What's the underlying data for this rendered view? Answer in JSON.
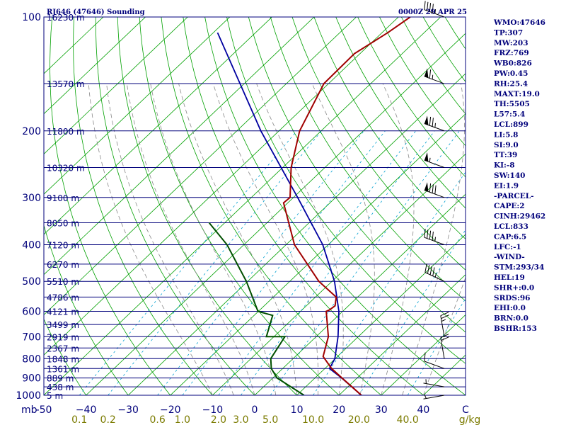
{
  "colors": {
    "frame": "#00007b",
    "isotherm": "#00a000",
    "dry_adiabat": "#00a000",
    "moist_adiabat": "#888888",
    "mixing_ratio": "#00a0d0",
    "temperature": "#a00000",
    "dewpoint": "#005000",
    "parcel": "#0000a0",
    "wind": "#000000",
    "mix_label": "#7b7b00"
  },
  "chart_data": {
    "type": "skewt-logp",
    "title": "RJ646 (47646) Sounding",
    "datetime": "0000Z 29 APR 25",
    "x_axis": {
      "unit_label": "mb",
      "range_c": [
        -50,
        50
      ],
      "ticks": [
        {
          "value": -50,
          "label": "-50"
        },
        {
          "value": -40,
          "label": "−40"
        },
        {
          "value": -30,
          "label": "−30"
        },
        {
          "value": -20,
          "label": "−20"
        },
        {
          "value": -10,
          "label": "−10"
        },
        {
          "value": 0,
          "label": "0"
        },
        {
          "value": 10,
          "label": "10"
        },
        {
          "value": 20,
          "label": "20"
        },
        {
          "value": 30,
          "label": "30"
        },
        {
          "value": 40,
          "label": "40"
        },
        {
          "value": 50,
          "label": "C"
        }
      ]
    },
    "y_axis": {
      "scale": "log",
      "range_mb": [
        1000,
        100
      ],
      "ticks": [
        {
          "p": 100,
          "label": "100"
        },
        {
          "p": 200,
          "label": "200"
        },
        {
          "p": 300,
          "label": "300"
        },
        {
          "p": 400,
          "label": "400"
        },
        {
          "p": 500,
          "label": "500"
        },
        {
          "p": 600,
          "label": "600"
        },
        {
          "p": 700,
          "label": "700"
        },
        {
          "p": 800,
          "label": "800"
        },
        {
          "p": 900,
          "label": "900"
        },
        {
          "p": 1000,
          "label": "1000"
        }
      ]
    },
    "height_levels": [
      {
        "p": 100,
        "label": "16230 m"
      },
      {
        "p": 150,
        "label": "13570 m"
      },
      {
        "p": 200,
        "label": "11800 m"
      },
      {
        "p": 250,
        "label": "10320 m"
      },
      {
        "p": 300,
        "label": "9100 m"
      },
      {
        "p": 350,
        "label": "8050 m"
      },
      {
        "p": 400,
        "label": "7120 m"
      },
      {
        "p": 450,
        "label": "6270 m"
      },
      {
        "p": 500,
        "label": "5510 m"
      },
      {
        "p": 550,
        "label": "4786 m"
      },
      {
        "p": 600,
        "label": "4121 m"
      },
      {
        "p": 650,
        "label": "3499 m"
      },
      {
        "p": 700,
        "label": "2919 m"
      },
      {
        "p": 750,
        "label": "2367 m"
      },
      {
        "p": 800,
        "label": "1848 m"
      },
      {
        "p": 850,
        "label": "1361 m"
      },
      {
        "p": 900,
        "label": "889 m"
      },
      {
        "p": 950,
        "label": "438 m"
      },
      {
        "p": 1000,
        "label": "5 m"
      }
    ],
    "mixing_ratio_labels": [
      {
        "w": 0.1,
        "label": "0.1"
      },
      {
        "w": 0.2,
        "label": "0.2"
      },
      {
        "w": 0.6,
        "label": "0.6"
      },
      {
        "w": 1.0,
        "label": "1.0"
      },
      {
        "w": 2.0,
        "label": "2.0"
      },
      {
        "w": 3.0,
        "label": "3.0"
      },
      {
        "w": 5.0,
        "label": "5.0"
      },
      {
        "w": 10.0,
        "label": "10.0"
      },
      {
        "w": 20.0,
        "label": "20.0"
      },
      {
        "w": 40.0,
        "label": "40.0"
      }
    ],
    "mixing_ratio_unit": "g/kg",
    "temperature": [
      {
        "p": 100,
        "t": -57.2
      },
      {
        "p": 110,
        "t": -58.6
      },
      {
        "p": 125,
        "t": -61.3
      },
      {
        "p": 150,
        "t": -61.1
      },
      {
        "p": 200,
        "t": -55.1
      },
      {
        "p": 250,
        "t": -48.0
      },
      {
        "p": 300,
        "t": -40.8
      },
      {
        "p": 310,
        "t": -41.0
      },
      {
        "p": 400,
        "t": -28.0
      },
      {
        "p": 500,
        "t": -13.1
      },
      {
        "p": 550,
        "t": -5.1
      },
      {
        "p": 580,
        "t": -3.2
      },
      {
        "p": 595,
        "t": -3.5
      },
      {
        "p": 600,
        "t": -3.9
      },
      {
        "p": 700,
        "t": 2.9
      },
      {
        "p": 790,
        "t": 6.6
      },
      {
        "p": 850,
        "t": 11.6
      },
      {
        "p": 900,
        "t": 16.4
      },
      {
        "p": 1000,
        "t": 25.3
      }
    ],
    "dewpoint": [
      {
        "p": 350,
        "t": -53.7
      },
      {
        "p": 400,
        "t": -44.0
      },
      {
        "p": 500,
        "t": -30.3
      },
      {
        "p": 600,
        "t": -20.1
      },
      {
        "p": 615,
        "t": -15.6
      },
      {
        "p": 700,
        "t": -11.8
      },
      {
        "p": 700,
        "t": -7.4
      },
      {
        "p": 800,
        "t": -5.3
      },
      {
        "p": 850,
        "t": -2.7
      },
      {
        "p": 900,
        "t": 1.0
      },
      {
        "p": 1000,
        "t": 11.7
      }
    ],
    "parcel_path": [
      {
        "p": 1000,
        "t": 25.3
      },
      {
        "p": 900,
        "t": 16.3
      },
      {
        "p": 850,
        "t": 11.1
      },
      {
        "p": 800,
        "t": 9.9
      },
      {
        "p": 700,
        "t": 5.2
      },
      {
        "p": 600,
        "t": -0.9
      },
      {
        "p": 500,
        "t": -9.4
      },
      {
        "p": 400,
        "t": -21.3
      },
      {
        "p": 300,
        "t": -39.0
      },
      {
        "p": 200,
        "t": -64.3
      },
      {
        "p": 110,
        "t": -99.0
      }
    ],
    "wind_barbs": [
      {
        "p": 100,
        "dir": 290,
        "kt": 45
      },
      {
        "p": 150,
        "dir": 290,
        "kt": 65
      },
      {
        "p": 200,
        "dir": 290,
        "kt": 75
      },
      {
        "p": 250,
        "dir": 290,
        "kt": 55
      },
      {
        "p": 300,
        "dir": 290,
        "kt": 80
      },
      {
        "p": 400,
        "dir": 290,
        "kt": 45
      },
      {
        "p": 500,
        "dir": 295,
        "kt": 45
      },
      {
        "p": 700,
        "dir": 350,
        "kt": 25
      },
      {
        "p": 800,
        "dir": 350,
        "kt": 20
      },
      {
        "p": 850,
        "dir": 290,
        "kt": 10
      },
      {
        "p": 950,
        "dir": 280,
        "kt": 5
      },
      {
        "p": 1000,
        "dir": 260,
        "kt": 5
      }
    ]
  },
  "indices": [
    "WMO:47646",
    "TP:307",
    "MW:203",
    "FRZ:769",
    "WB0:826",
    "PW:0.45",
    "RH:25.4",
    "MAXT:19.0",
    "TH:5505",
    "L57:5.4",
    "LCL:899",
    "LI:5.8",
    "SI:9.0",
    "TT:39",
    "KI:-8",
    "SW:140",
    "EI:1.9",
    "-PARCEL-",
    "CAPE:2",
    "CINH:29462",
    "LCL:833",
    "CAP:6.5",
    "LFC:-1",
    "-WIND-",
    "STM:293/34",
    "HEL:19",
    "SHR+:0.0",
    "SRDS:96",
    "EHI:0.0",
    "BRN:0.0",
    "BSHR:153"
  ]
}
